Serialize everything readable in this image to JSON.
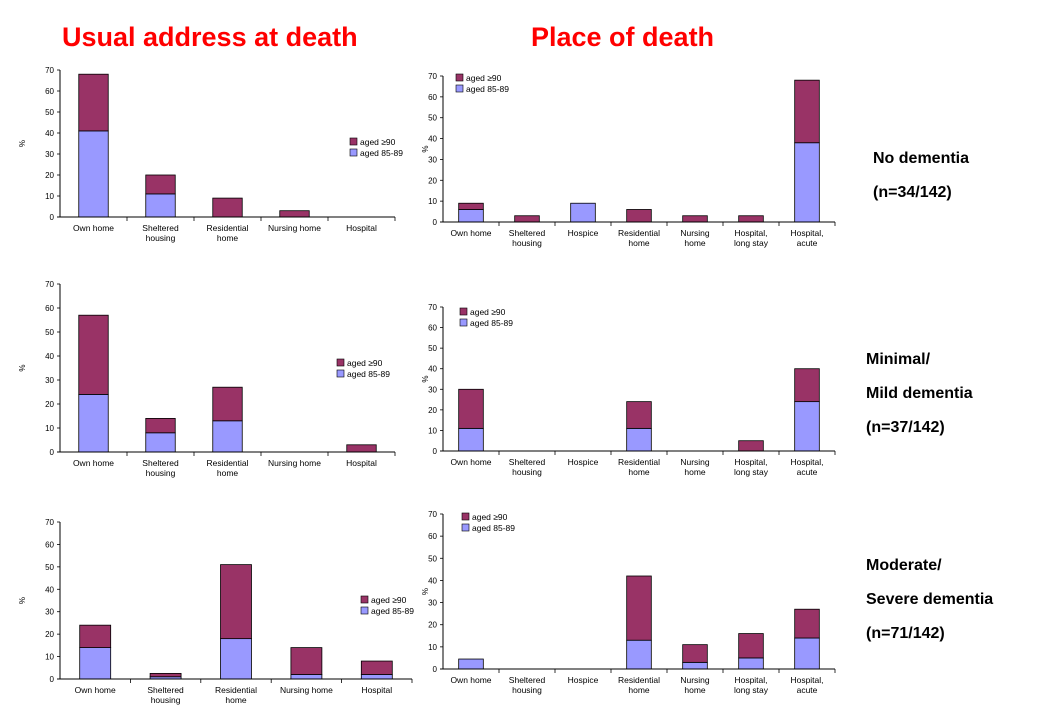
{
  "titles": {
    "left": "Usual address at death",
    "right": "Place of death"
  },
  "row_labels": [
    [
      "No dementia",
      "(n=34/142)"
    ],
    [
      "Minimal/",
      "Mild dementia",
      "(n=37/142)"
    ],
    [
      "Moderate/",
      "Severe dementia",
      "(n=71/142)"
    ]
  ],
  "colors": {
    "aged_90_plus": "#993366",
    "aged_85_89": "#9999ff"
  },
  "chart_data": [
    {
      "type": "bar",
      "stacked": true,
      "ylabel": "%",
      "ylim": [
        0,
        70
      ],
      "yticks": [
        0,
        10,
        20,
        30,
        40,
        50,
        60,
        70
      ],
      "legend_position": "right",
      "categories": [
        [
          "Own home"
        ],
        [
          "Sheltered",
          "housing"
        ],
        [
          "Residential",
          "home"
        ],
        [
          "Nursing home"
        ],
        [
          "Hospital"
        ]
      ],
      "series": [
        {
          "name": "aged 85-89",
          "values": [
            41,
            11,
            0,
            0,
            0
          ]
        },
        {
          "name": "aged ≥90",
          "values": [
            27,
            9,
            9,
            3,
            0
          ]
        }
      ]
    },
    {
      "type": "bar",
      "stacked": true,
      "ylabel": "%",
      "ylim": [
        0,
        70
      ],
      "yticks": [
        0,
        10,
        20,
        30,
        40,
        50,
        60,
        70
      ],
      "legend_position": "top-left",
      "categories": [
        [
          "Own home"
        ],
        [
          "Sheltered",
          "housing"
        ],
        [
          "Hospice"
        ],
        [
          "Residential",
          "home"
        ],
        [
          "Nursing",
          "home"
        ],
        [
          "Hospital,",
          "long stay"
        ],
        [
          "Hospital,",
          "acute"
        ]
      ],
      "series": [
        {
          "name": "aged 85-89",
          "values": [
            6,
            0,
            9,
            0,
            0,
            0,
            38
          ]
        },
        {
          "name": "aged ≥90",
          "values": [
            3,
            3,
            0,
            6,
            3,
            3,
            30
          ]
        }
      ]
    },
    {
      "type": "bar",
      "stacked": true,
      "ylabel": "%",
      "ylim": [
        0,
        70
      ],
      "yticks": [
        0,
        10,
        20,
        30,
        40,
        50,
        60,
        70
      ],
      "legend_position": "right",
      "categories": [
        [
          "Own home"
        ],
        [
          "Sheltered",
          "housing"
        ],
        [
          "Residential",
          "home"
        ],
        [
          "Nursing home"
        ],
        [
          "Hospital"
        ]
      ],
      "series": [
        {
          "name": "aged 85-89",
          "values": [
            24,
            8,
            13,
            0,
            0
          ]
        },
        {
          "name": "aged ≥90",
          "values": [
            33,
            6,
            14,
            0,
            3
          ]
        }
      ]
    },
    {
      "type": "bar",
      "stacked": true,
      "ylabel": "%",
      "ylim": [
        0,
        70
      ],
      "yticks": [
        0,
        10,
        20,
        30,
        40,
        50,
        60,
        70
      ],
      "legend_position": "top-left",
      "categories": [
        [
          "Own home"
        ],
        [
          "Sheltered",
          "housing"
        ],
        [
          "Hospice"
        ],
        [
          "Residential",
          "home"
        ],
        [
          "Nursing",
          "home"
        ],
        [
          "Hospital,",
          "long stay"
        ],
        [
          "Hospital,",
          "acute"
        ]
      ],
      "series": [
        {
          "name": "aged 85-89",
          "values": [
            11,
            0,
            0,
            11,
            0,
            0,
            24
          ]
        },
        {
          "name": "aged ≥90",
          "values": [
            19,
            0,
            0,
            13,
            0,
            5,
            16
          ]
        }
      ]
    },
    {
      "type": "bar",
      "stacked": true,
      "ylabel": "%",
      "ylim": [
        0,
        70
      ],
      "yticks": [
        0,
        10,
        20,
        30,
        40,
        50,
        60,
        70
      ],
      "legend_position": "right",
      "categories": [
        [
          "Own home"
        ],
        [
          "Sheltered",
          "housing"
        ],
        [
          "Residential",
          "home"
        ],
        [
          "Nursing home"
        ],
        [
          "Hospital"
        ]
      ],
      "series": [
        {
          "name": "aged 85-89",
          "values": [
            14,
            1,
            18,
            2,
            2
          ]
        },
        {
          "name": "aged ≥90",
          "values": [
            10,
            1.5,
            33,
            12,
            6
          ]
        }
      ]
    },
    {
      "type": "bar",
      "stacked": true,
      "ylabel": "%",
      "ylim": [
        0,
        70
      ],
      "yticks": [
        0,
        10,
        20,
        30,
        40,
        50,
        60,
        70
      ],
      "legend_position": "top-left",
      "categories": [
        [
          "Own home"
        ],
        [
          "Sheltered",
          "housing"
        ],
        [
          "Hospice"
        ],
        [
          "Residential",
          "home"
        ],
        [
          "Nursing",
          "home"
        ],
        [
          "Hospital,",
          "long stay"
        ],
        [
          "Hospital,",
          "acute"
        ]
      ],
      "series": [
        {
          "name": "aged 85-89",
          "values": [
            4.5,
            0,
            0,
            13,
            3,
            5,
            14
          ]
        },
        {
          "name": "aged ≥90",
          "values": [
            0,
            0,
            0,
            29,
            8,
            11,
            13
          ]
        }
      ]
    }
  ]
}
